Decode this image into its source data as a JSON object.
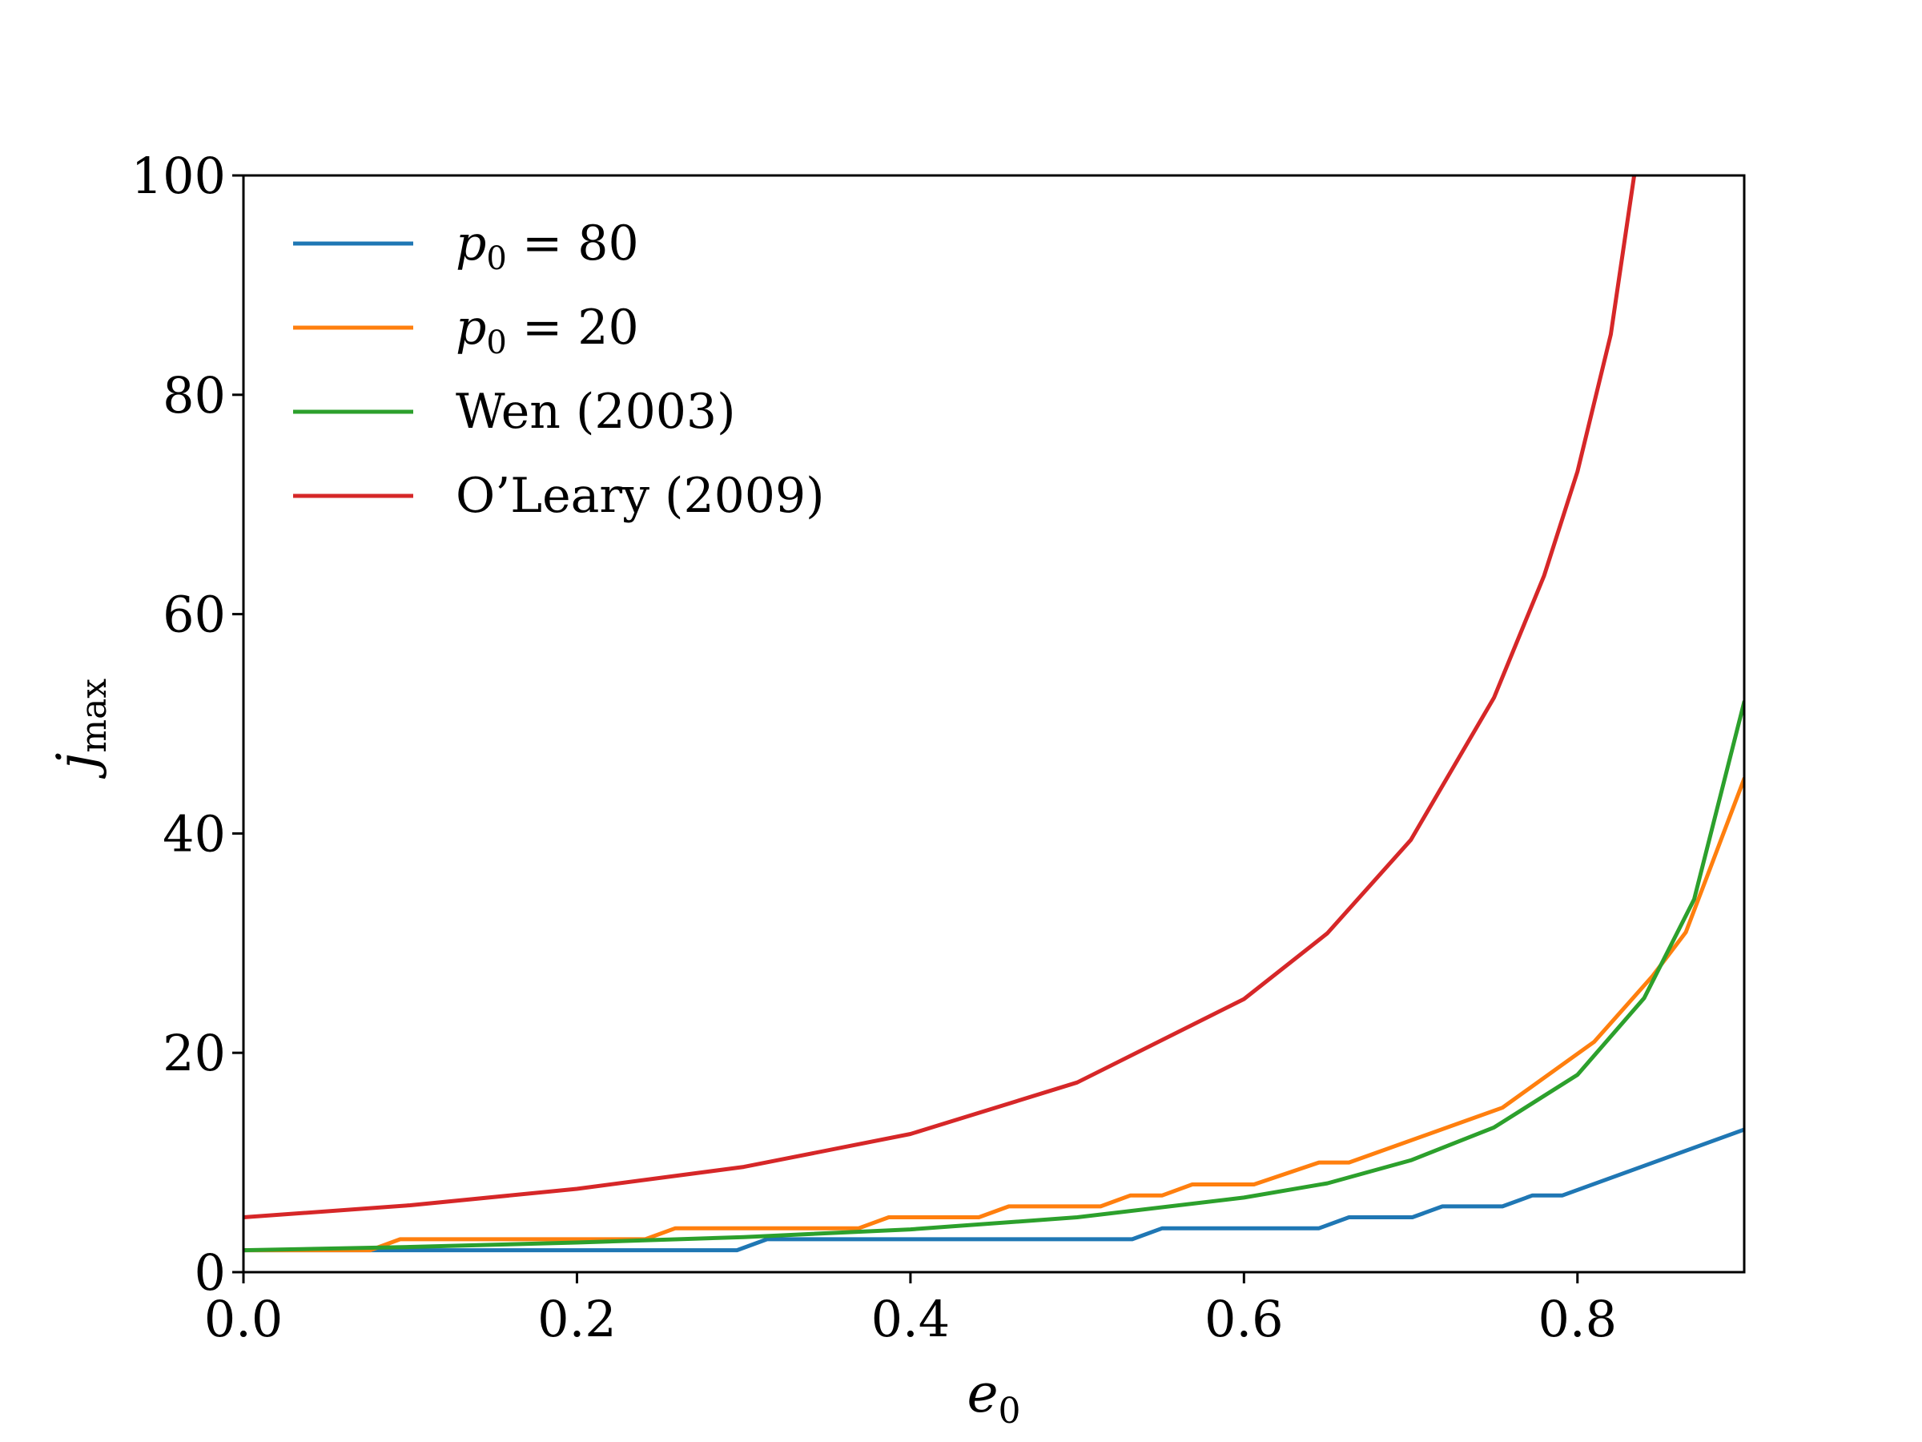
{
  "chart_data": {
    "type": "line",
    "xlabel": {
      "base": "e",
      "sub": "0"
    },
    "ylabel": {
      "base": "j",
      "sub": "max"
    },
    "xlim": [
      0.0,
      0.9
    ],
    "ylim": [
      0,
      100
    ],
    "xticks": [
      "0.0",
      "0.2",
      "0.4",
      "0.6",
      "0.8"
    ],
    "yticks": [
      "0",
      "20",
      "40",
      "60",
      "80",
      "100"
    ],
    "grid": false,
    "legend_position": "top-left",
    "series": [
      {
        "name": "p0 = 80",
        "legend": {
          "base": "p",
          "sub": "0",
          "rest": " = 80"
        },
        "color": "#1f77b4",
        "x": [
          0.0,
          0.296,
          0.314,
          0.533,
          0.551,
          0.645,
          0.663,
          0.701,
          0.719,
          0.755,
          0.773,
          0.791,
          0.9
        ],
        "y": [
          2,
          2,
          3,
          3,
          4,
          4,
          5,
          5,
          6,
          6,
          7,
          7,
          13
        ]
      },
      {
        "name": "p0 = 20",
        "legend": {
          "base": "p",
          "sub": "0",
          "rest": " = 20"
        },
        "color": "#ff7f0e",
        "x": [
          0.0,
          0.076,
          0.094,
          0.241,
          0.259,
          0.369,
          0.387,
          0.441,
          0.459,
          0.514,
          0.532,
          0.551,
          0.569,
          0.606,
          0.645,
          0.663,
          0.755,
          0.81,
          0.845,
          0.865,
          0.88,
          0.9
        ],
        "y": [
          2,
          2,
          3,
          3,
          4,
          4,
          5,
          5,
          6,
          6,
          7,
          7,
          8,
          8,
          10,
          10,
          15,
          21,
          27,
          31,
          37,
          45
        ]
      },
      {
        "name": "Wen (2003)",
        "legend": {
          "base": "",
          "sub": "",
          "rest": "Wen (2003)"
        },
        "color": "#2ca02c",
        "x": [
          0.0,
          0.1,
          0.2,
          0.3,
          0.4,
          0.5,
          0.6,
          0.65,
          0.7,
          0.75,
          0.8,
          0.84,
          0.87,
          0.9
        ],
        "y": [
          2.0,
          2.3,
          2.7,
          3.2,
          3.9,
          5.0,
          6.8,
          8.1,
          10.2,
          13.2,
          18.0,
          25.0,
          34.0,
          52.0
        ]
      },
      {
        "name": "O'Leary (2009)",
        "legend": {
          "base": "",
          "sub": "",
          "rest": "O’Leary (2009)"
        },
        "color": "#d62728",
        "x": [
          0.0,
          0.1,
          0.2,
          0.3,
          0.4,
          0.5,
          0.6,
          0.65,
          0.7,
          0.75,
          0.78,
          0.8,
          0.82,
          0.834
        ],
        "y": [
          5.0,
          6.1,
          7.6,
          9.6,
          12.6,
          17.3,
          24.9,
          30.9,
          39.4,
          52.4,
          63.5,
          73.0,
          85.5,
          100.0
        ]
      }
    ]
  }
}
